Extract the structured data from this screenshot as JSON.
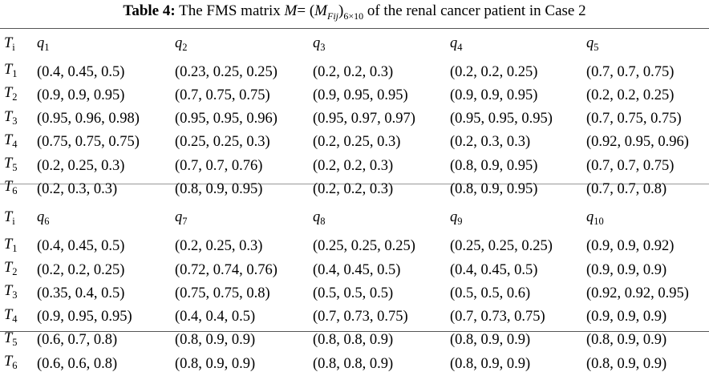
{
  "caption": {
    "label": "Table 4:",
    "text_before": "The FMS matrix",
    "M": "M",
    "eq": "= (",
    "Mf": "M",
    "fij": "Fij",
    "close": ")",
    "dims": "6×10",
    "text_after": "of the renal cancer patient in Case 2"
  },
  "block1": {
    "row_header": {
      "base": "T",
      "sub": "i"
    },
    "cols": [
      {
        "base": "q",
        "sub": "1"
      },
      {
        "base": "q",
        "sub": "2"
      },
      {
        "base": "q",
        "sub": "3"
      },
      {
        "base": "q",
        "sub": "4"
      },
      {
        "base": "q",
        "sub": "5"
      }
    ],
    "rows": [
      {
        "label": {
          "base": "T",
          "sub": "1"
        },
        "cells": [
          "(0.4, 0.45, 0.5)",
          "(0.23, 0.25, 0.25)",
          "(0.2, 0.2, 0.3)",
          "(0.2, 0.2, 0.25)",
          "(0.7, 0.7, 0.75)"
        ]
      },
      {
        "label": {
          "base": "T",
          "sub": "2"
        },
        "cells": [
          "(0.9, 0.9, 0.95)",
          "(0.7, 0.75, 0.75)",
          "(0.9, 0.95, 0.95)",
          "(0.9, 0.9, 0.95)",
          "(0.2, 0.2, 0.25)"
        ]
      },
      {
        "label": {
          "base": "T",
          "sub": "3"
        },
        "cells": [
          "(0.95, 0.96, 0.98)",
          "(0.95, 0.95, 0.96)",
          "(0.95, 0.97, 0.97)",
          "(0.95, 0.95, 0.95)",
          "(0.7, 0.75, 0.75)"
        ]
      },
      {
        "label": {
          "base": "T",
          "sub": "4"
        },
        "cells": [
          "(0.75, 0.75, 0.75)",
          "(0.25, 0.25, 0.3)",
          "(0.2, 0.25, 0.3)",
          "(0.2, 0.3, 0.3)",
          "(0.92, 0.95, 0.96)"
        ]
      },
      {
        "label": {
          "base": "T",
          "sub": "5"
        },
        "cells": [
          "(0.2, 0.25, 0.3)",
          "(0.7, 0.7, 0.76)",
          "(0.2, 0.2, 0.3)",
          "(0.8, 0.9, 0.95)",
          "(0.7, 0.7, 0.75)"
        ]
      },
      {
        "label": {
          "base": "T",
          "sub": "6"
        },
        "cells": [
          "(0.2, 0.3, 0.3)",
          "(0.8, 0.9, 0.95)",
          "(0.2, 0.2, 0.3)",
          "(0.8, 0.9, 0.95)",
          "(0.7, 0.7, 0.8)"
        ]
      }
    ]
  },
  "block2": {
    "row_header": {
      "base": "T",
      "sub": "i"
    },
    "cols": [
      {
        "base": "q",
        "sub": "6"
      },
      {
        "base": "q",
        "sub": "7"
      },
      {
        "base": "q",
        "sub": "8"
      },
      {
        "base": "q",
        "sub": "9"
      },
      {
        "base": "q",
        "sub": "10"
      }
    ],
    "rows": [
      {
        "label": {
          "base": "T",
          "sub": "1"
        },
        "cells": [
          "(0.4, 0.45, 0.5)",
          "(0.2, 0.25, 0.3)",
          "(0.25, 0.25, 0.25)",
          "(0.25, 0.25, 0.25)",
          "(0.9, 0.9, 0.92)"
        ]
      },
      {
        "label": {
          "base": "T",
          "sub": "2"
        },
        "cells": [
          "(0.2, 0.2, 0.25)",
          "(0.72, 0.74, 0.76)",
          "(0.4, 0.45, 0.5)",
          "(0.4, 0.45, 0.5)",
          "(0.9, 0.9, 0.9)"
        ]
      },
      {
        "label": {
          "base": "T",
          "sub": "3"
        },
        "cells": [
          "(0.35, 0.4, 0.5)",
          "(0.75, 0.75, 0.8)",
          "(0.5, 0.5, 0.5)",
          "(0.5, 0.5, 0.6)",
          "(0.92, 0.92, 0.95)"
        ]
      },
      {
        "label": {
          "base": "T",
          "sub": "4"
        },
        "cells": [
          "(0.9, 0.95, 0.95)",
          "(0.4, 0.4, 0.5)",
          "(0.7, 0.73, 0.75)",
          "(0.7, 0.73, 0.75)",
          "(0.9, 0.9, 0.9)"
        ]
      },
      {
        "label": {
          "base": "T",
          "sub": "5"
        },
        "cells": [
          "(0.6, 0.7, 0.8)",
          "(0.8, 0.9, 0.9)",
          "(0.8, 0.8, 0.9)",
          "(0.8, 0.9, 0.9)",
          "(0.8, 0.9, 0.9)"
        ]
      },
      {
        "label": {
          "base": "T",
          "sub": "6"
        },
        "cells": [
          "(0.6, 0.6, 0.8)",
          "(0.8, 0.9, 0.9)",
          "(0.8, 0.8, 0.9)",
          "(0.8, 0.9, 0.9)",
          "(0.8, 0.9, 0.9)"
        ]
      }
    ]
  }
}
